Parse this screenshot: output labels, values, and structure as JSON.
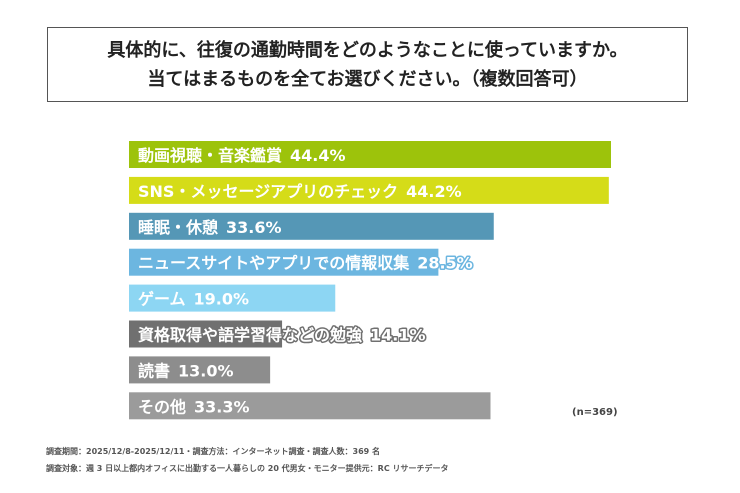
{
  "title": {
    "line1": "具体的に、往復の通勤時間をどのようなことに使っていますか。",
    "line2": "当てはまるものを全てお選びください。（複数回答可）"
  },
  "chart_data": {
    "type": "bar",
    "orientation": "horizontal",
    "categories": [
      "動画視聴・音楽鑑賞",
      "SNS・メッセージアプリのチェック",
      "睡眠・休憩",
      "ニュースサイトやアプリでの情報収集",
      "ゲーム",
      "資格取得や語学習得などの勉強",
      "読書",
      "その他"
    ],
    "values": [
      44.4,
      44.2,
      33.6,
      28.5,
      19.0,
      14.1,
      13.0,
      33.3
    ],
    "value_labels": [
      "44.4%",
      "44.2%",
      "33.6%",
      "28.5%",
      "19.0%",
      "14.1%",
      "13.0%",
      "33.3%"
    ],
    "unit": "%",
    "colors": [
      "#9dc30b",
      "#d5dc18",
      "#5597b6",
      "#6cb6e0",
      "#8dd6f3",
      "#707070",
      "#8d8d8d",
      "#9b9b9b"
    ],
    "xlim": [
      0,
      44.4
    ],
    "grid": false,
    "legend": "none",
    "n_label": "(n=369)"
  },
  "footer": {
    "line1": "調査期間：2025/12/8-2025/12/11・調査方法：インターネット調査・調査人数：369 名",
    "line2": "調査対象：週 3 日以上都内オフィスに出勤する一人暮らしの 20 代男女・モニター提供元：RC リサーチデータ"
  }
}
